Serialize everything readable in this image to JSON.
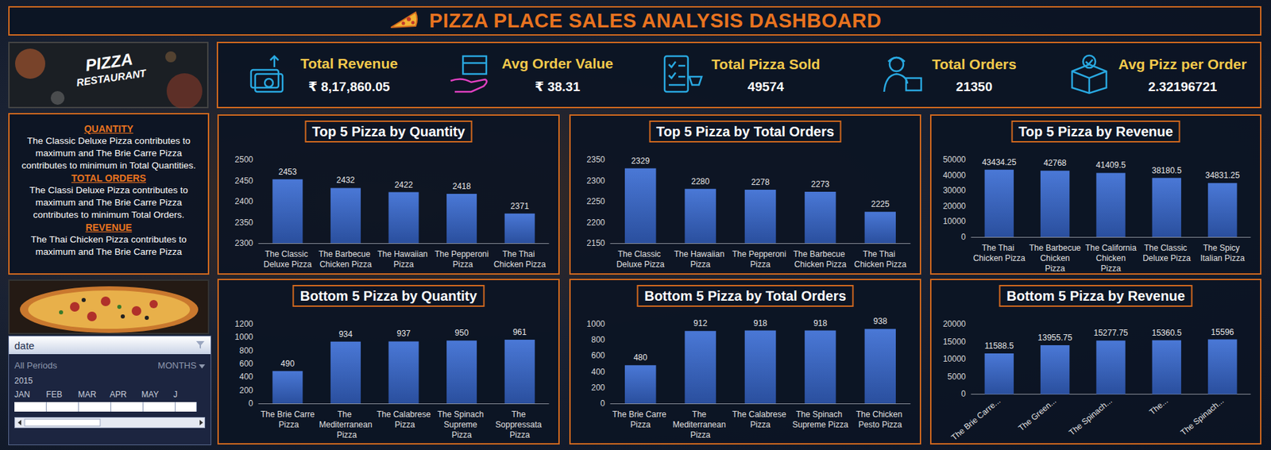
{
  "dashboard": {
    "title": "PIZZA PLACE SALES ANALYSIS DASHBOARD",
    "logo_text": [
      "PIZZA",
      "RESTAURANT"
    ],
    "kpis": [
      {
        "label": "Total Revenue",
        "value": "₹ 8,17,860.05"
      },
      {
        "label": "Avg Order Value",
        "value": "₹ 38.31"
      },
      {
        "label": "Total Pizza Sold",
        "value": 49574
      },
      {
        "label": "Total Orders",
        "value": 21350
      },
      {
        "label": "Avg Pizz per Order",
        "value": 2.32196721
      }
    ],
    "insights": [
      {
        "heading": "QUANTITY",
        "text": "The Classic Deluxe Pizza contributes to maximum and The Brie Carre Pizza contributes to minimum in Total Quantities."
      },
      {
        "heading": "TOTAL ORDERS",
        "text": "The Classi Deluxe Pizza contributes to maximum and The Brie Carre Pizza contributes to minimum Total Orders."
      },
      {
        "heading": "REVENUE",
        "text": "The  Thai Chicken Pizza contributes to maximum and The Brie Carre Pizza"
      }
    ],
    "slicer": {
      "title": "date",
      "period": "All Periods",
      "level": "MONTHS",
      "year": "2015",
      "months": [
        "JAN",
        "FEB",
        "MAR",
        "APR",
        "MAY",
        "J"
      ]
    }
  },
  "chart_data": [
    {
      "type": "bar",
      "title": "Top 5 Pizza by Quantity",
      "categories": [
        "The Classic Deluxe Pizza",
        "The Barbecue Chicken Pizza",
        "The Hawaiian Pizza",
        "The Pepperoni Pizza",
        "The Thai Chicken Pizza"
      ],
      "values": [
        2453,
        2432,
        2422,
        2418,
        2371
      ],
      "color": "#4a78d6",
      "ylim": [
        2300,
        2500
      ],
      "yticks": [
        2300,
        2350,
        2400,
        2450,
        2500
      ],
      "grid": false,
      "data_labels": true
    },
    {
      "type": "bar",
      "title": "Top 5 Pizza by Total Orders",
      "categories": [
        "The Classic Deluxe Pizza",
        "The Hawaiian Pizza",
        "The Pepperoni Pizza",
        "The Barbecue Chicken Pizza",
        "The Thai Chicken Pizza"
      ],
      "values": [
        2329,
        2280,
        2278,
        2273,
        2225
      ],
      "color": "#4a78d6",
      "ylim": [
        2150,
        2350
      ],
      "yticks": [
        2150,
        2200,
        2250,
        2300,
        2350
      ],
      "grid": false,
      "data_labels": true
    },
    {
      "type": "bar",
      "title": "Top 5 Pizza by Revenue",
      "categories": [
        "The Thai Chicken Pizza",
        "The Barbecue Chicken Pizza",
        "The California Chicken Pizza",
        "The Classic Deluxe Pizza",
        "The Spicy Italian Pizza"
      ],
      "values": [
        43434.25,
        42768,
        41409.5,
        38180.5,
        34831.25
      ],
      "color": "#4a78d6",
      "ylim": [
        0,
        50000
      ],
      "yticks": [
        0,
        10000,
        20000,
        30000,
        40000,
        50000
      ],
      "grid": false,
      "data_labels": true
    },
    {
      "type": "bar",
      "title": "Bottom 5 Pizza by Quantity",
      "categories": [
        "The Brie Carre Pizza",
        "The Mediterranean Pizza",
        "The Calabrese Pizza",
        "The Spinach Supreme Pizza",
        "The Soppressata Pizza"
      ],
      "values": [
        490,
        934,
        937,
        950,
        961
      ],
      "color": "#4a78d6",
      "ylim": [
        0,
        1200
      ],
      "yticks": [
        0,
        200,
        400,
        600,
        800,
        1000,
        1200
      ],
      "grid": false,
      "data_labels": true
    },
    {
      "type": "bar",
      "title": "Bottom 5 Pizza by Total Orders",
      "categories": [
        "The Brie Carre Pizza",
        "The Mediterranean Pizza",
        "The Calabrese Pizza",
        "The Spinach Supreme Pizza",
        "The Chicken Pesto Pizza"
      ],
      "values": [
        480,
        912,
        918,
        918,
        938
      ],
      "color": "#4a78d6",
      "ylim": [
        0,
        1000
      ],
      "yticks": [
        0,
        200,
        400,
        600,
        800,
        1000
      ],
      "grid": false,
      "data_labels": true
    },
    {
      "type": "bar",
      "title": "Bottom 5 Pizza by Revenue",
      "categories": [
        "The Brie Carre...",
        "The Green...",
        "The Spinach...",
        "The...",
        "The Spinach..."
      ],
      "values": [
        11588.5,
        13955.75,
        15277.75,
        15360.5,
        15596
      ],
      "color": "#4a78d6",
      "ylim": [
        0,
        20000
      ],
      "yticks": [
        0,
        5000,
        10000,
        15000,
        20000
      ],
      "grid": false,
      "data_labels": true
    }
  ]
}
